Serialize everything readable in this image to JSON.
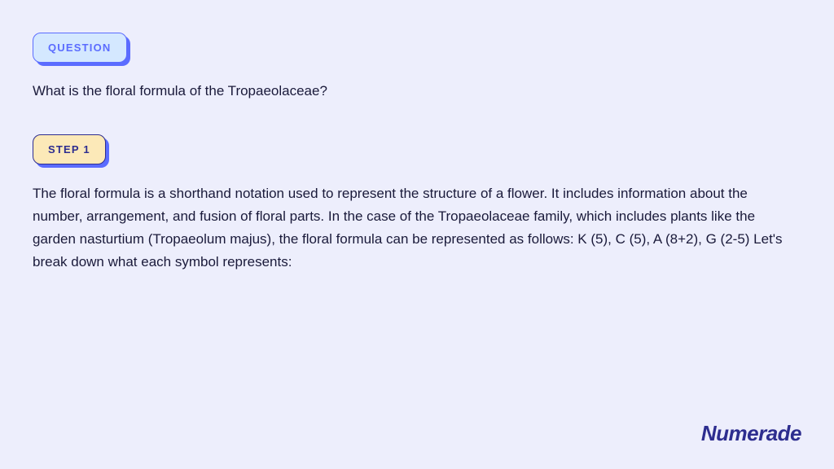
{
  "badges": {
    "question_label": "QUESTION",
    "step_label": "STEP 1"
  },
  "question": {
    "text": "What is the floral formula of the Tropaeolaceae?"
  },
  "step": {
    "text": "The floral formula is a shorthand notation used to represent the structure of a flower. It includes information about the number, arrangement, and fusion of floral parts. In the case of the Tropaeolaceae family, which includes plants like the garden nasturtium (Tropaeolum majus), the floral formula can be represented as follows: K (5), C (5), A (8+2), G (2-5) Let's break down what each symbol represents:"
  },
  "branding": {
    "logo_text": "Numerade"
  },
  "styling": {
    "page_bg": "#edeefc",
    "question_badge_bg": "#d4e8ff",
    "question_badge_border": "#5b6cff",
    "step_badge_bg": "#fce9b8",
    "step_badge_border": "#2d2d8f",
    "shadow_color": "#5b6cff",
    "text_color": "#1a1a3a",
    "logo_color": "#2d2d8f",
    "body_fontsize": 17,
    "badge_fontsize": 13,
    "logo_fontsize": 26
  }
}
